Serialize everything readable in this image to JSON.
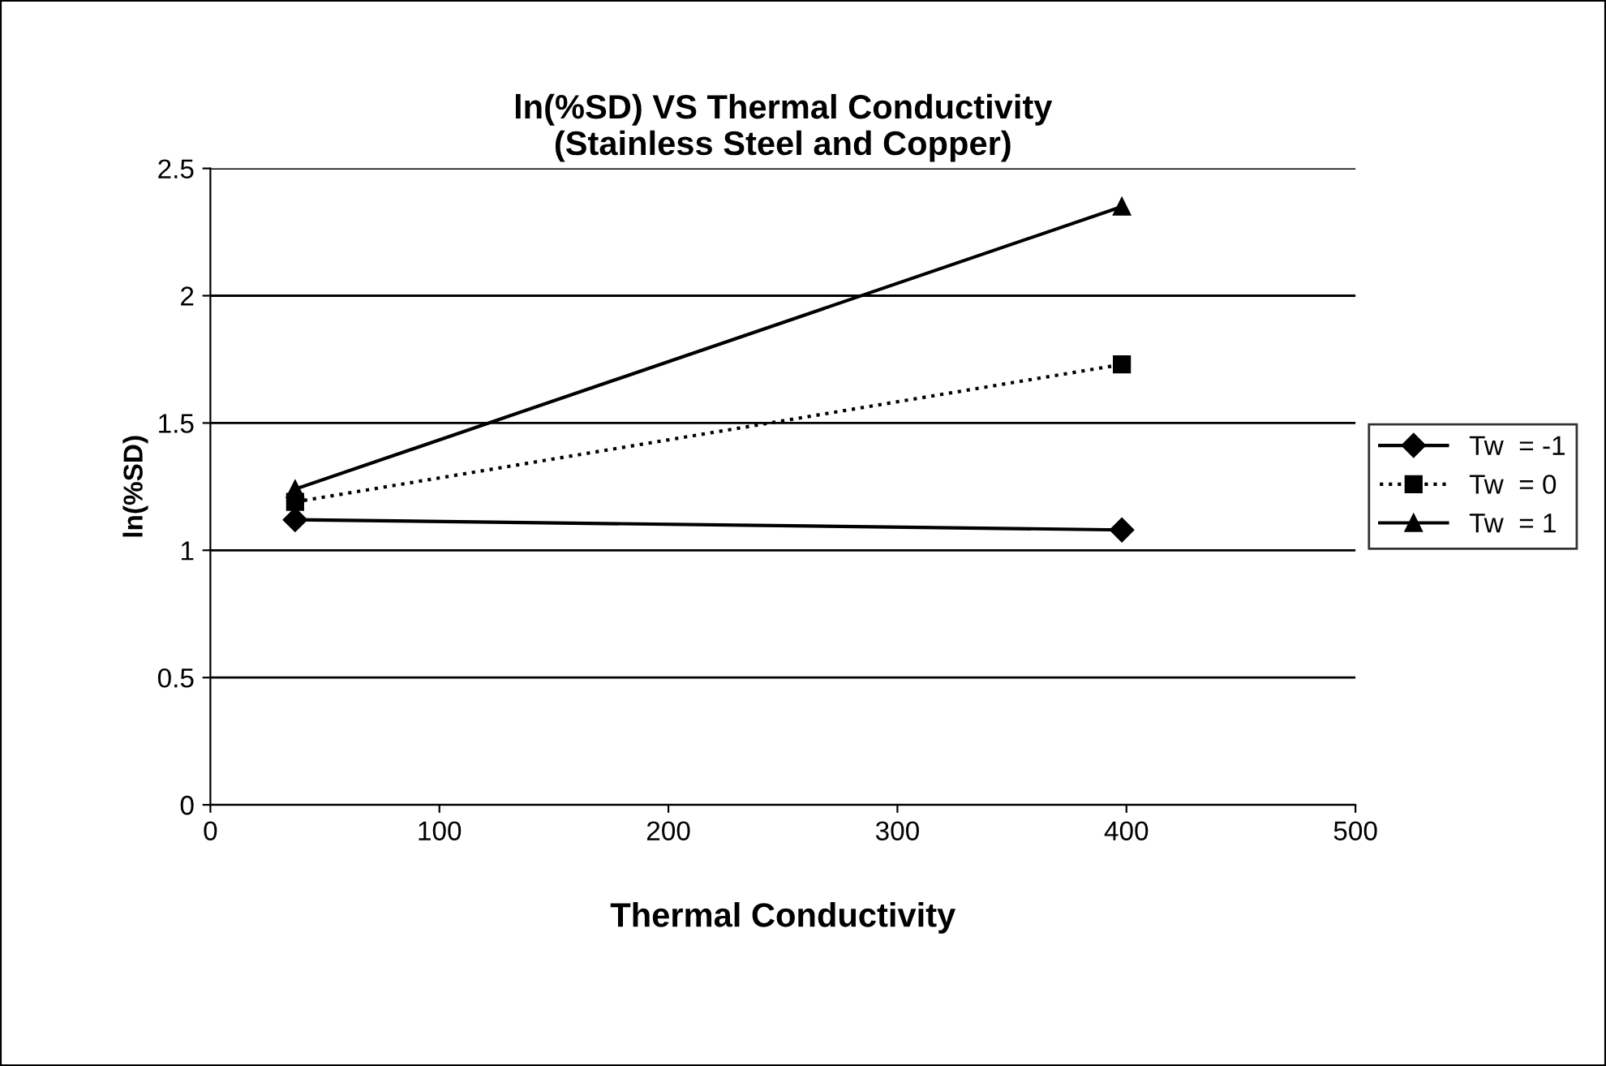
{
  "chart_data": {
    "type": "line",
    "title": "ln(%SD) VS Thermal Conductivity\n(Stainless Steel and Copper)",
    "xlabel": "Thermal Conductivity",
    "ylabel": "ln(%SD)",
    "x": [
      37,
      398
    ],
    "series": [
      {
        "name": "Tw  = -1",
        "color": "#000000",
        "values": [
          1.12,
          1.08
        ],
        "marker": "diamond",
        "line_style": "solid"
      },
      {
        "name": "Tw  = 0",
        "color": "#000000",
        "values": [
          1.19,
          1.73
        ],
        "marker": "square",
        "line_style": "dotted"
      },
      {
        "name": "Tw  = 1",
        "color": "#000000",
        "values": [
          1.24,
          2.35
        ],
        "marker": "triangle",
        "line_style": "solid"
      }
    ],
    "xlim": [
      0,
      500
    ],
    "xticks": [
      0,
      100,
      200,
      300,
      400,
      500
    ],
    "ylim": [
      0,
      2.5
    ],
    "yticks": [
      0,
      0.5,
      1,
      1.5,
      2,
      2.5
    ],
    "grid": "y",
    "legend": "right"
  }
}
